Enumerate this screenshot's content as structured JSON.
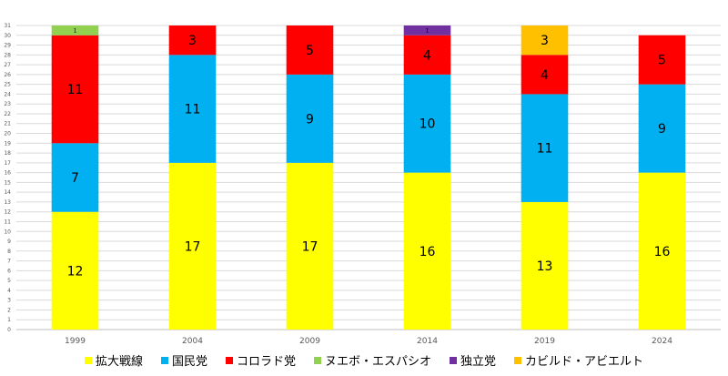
{
  "chart_data": {
    "type": "bar",
    "stacked": true,
    "categories": [
      "1999",
      "2004",
      "2009",
      "2014",
      "2019",
      "2024"
    ],
    "ylim": [
      0,
      31
    ],
    "yticks": [
      0,
      1,
      2,
      3,
      4,
      5,
      6,
      7,
      8,
      9,
      10,
      11,
      12,
      13,
      14,
      15,
      16,
      17,
      18,
      19,
      20,
      21,
      22,
      23,
      24,
      25,
      26,
      27,
      28,
      29,
      30,
      31
    ],
    "grid": true,
    "legend_position": "bottom",
    "series": [
      {
        "name": "拡大戦線",
        "color": "#FFFF00",
        "values": [
          12,
          17,
          17,
          16,
          13,
          16
        ]
      },
      {
        "name": "国民党",
        "color": "#00B0F0",
        "values": [
          7,
          11,
          9,
          10,
          11,
          9
        ]
      },
      {
        "name": "コロラド党",
        "color": "#FF0000",
        "values": [
          11,
          3,
          5,
          4,
          4,
          5
        ]
      },
      {
        "name": "ヌエボ・エスパシオ",
        "color": "#92D050",
        "values": [
          1,
          0,
          0,
          0,
          0,
          0
        ]
      },
      {
        "name": "独立党",
        "color": "#7030A0",
        "values": [
          0,
          0,
          0,
          1,
          0,
          0
        ]
      },
      {
        "name": "カビルド・アビエルト",
        "color": "#FFC000",
        "values": [
          0,
          0,
          0,
          0,
          3,
          0
        ]
      }
    ]
  }
}
